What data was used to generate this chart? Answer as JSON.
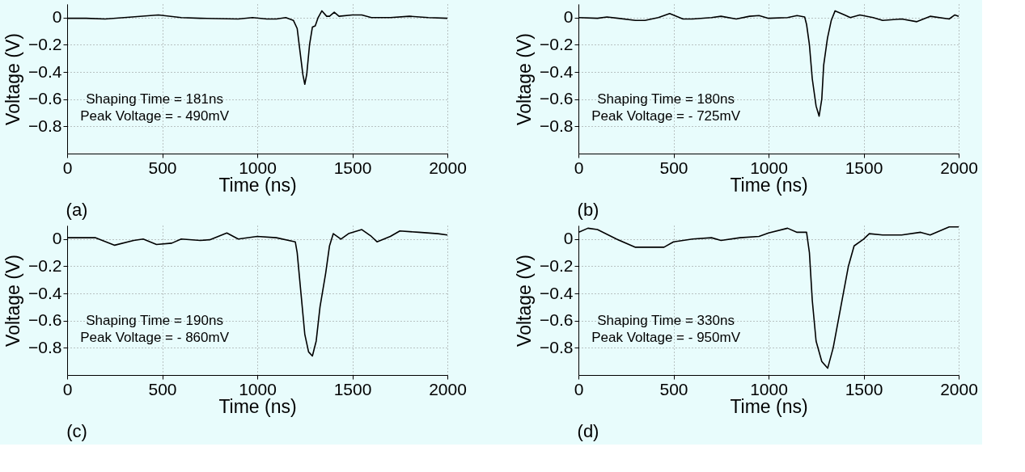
{
  "chart_data": [
    {
      "type": "line",
      "xlabel": "Time (ns)",
      "ylabel": "Voltage (V)",
      "xlim": [
        0,
        2000
      ],
      "ylim": [
        -1.0,
        0.1
      ],
      "xticks": [
        0,
        500,
        1000,
        1500,
        2000
      ],
      "yticks": [
        0,
        -0.2,
        -0.4,
        -0.6,
        -0.8
      ],
      "grid": true,
      "marker": "none",
      "line_style": "solid",
      "annotations": [
        "Shaping Time = 181ns",
        "Peak Voltage = - 490mV",
        "(a)"
      ],
      "x": [
        0,
        100,
        200,
        300,
        480,
        600,
        700,
        900,
        975,
        1050,
        1100,
        1150,
        1190,
        1210,
        1225,
        1240,
        1250,
        1260,
        1275,
        1290,
        1305,
        1320,
        1340,
        1365,
        1380,
        1405,
        1430,
        1500,
        1550,
        1600,
        1700,
        1800,
        1900,
        2000
      ],
      "series": [
        {
          "color": "#000000",
          "values": [
            -0.005,
            -0.005,
            -0.01,
            0.0,
            0.02,
            0.0,
            -0.005,
            -0.01,
            0.0,
            -0.01,
            -0.01,
            0.0,
            -0.02,
            -0.08,
            -0.25,
            -0.42,
            -0.49,
            -0.42,
            -0.2,
            -0.07,
            -0.06,
            0.0,
            0.05,
            0.01,
            0.01,
            0.04,
            0.01,
            0.02,
            0.02,
            0.0,
            0.0,
            0.01,
            0.0,
            -0.005
          ]
        }
      ]
    },
    {
      "type": "line",
      "xlabel": "Time (ns)",
      "ylabel": "Voltage (V)",
      "xlim": [
        0,
        2000
      ],
      "ylim": [
        -1.0,
        0.1
      ],
      "xticks": [
        0,
        500,
        1000,
        1500,
        2000
      ],
      "yticks": [
        0,
        -0.2,
        -0.4,
        -0.6,
        -0.8
      ],
      "grid": true,
      "marker": "none",
      "line_style": "solid",
      "annotations": [
        "Shaping Time = 180ns",
        "Peak Voltage = - 725mV",
        "(b)"
      ],
      "x": [
        0,
        100,
        150,
        300,
        350,
        420,
        480,
        550,
        600,
        700,
        750,
        830,
        900,
        950,
        1000,
        1100,
        1150,
        1190,
        1200,
        1215,
        1230,
        1250,
        1266,
        1280,
        1290,
        1310,
        1330,
        1350,
        1400,
        1430,
        1480,
        1550,
        1600,
        1700,
        1780,
        1850,
        1950,
        1980,
        2000
      ],
      "series": [
        {
          "color": "#000000",
          "values": [
            0.0,
            -0.005,
            0.005,
            -0.02,
            -0.02,
            0.0,
            0.03,
            -0.01,
            -0.01,
            0.0,
            0.01,
            -0.01,
            0.01,
            0.015,
            -0.005,
            0.0,
            0.015,
            0.005,
            -0.05,
            -0.2,
            -0.45,
            -0.65,
            -0.725,
            -0.6,
            -0.35,
            -0.15,
            -0.02,
            0.05,
            0.02,
            0.0,
            0.02,
            0.0,
            -0.02,
            -0.01,
            -0.03,
            0.01,
            -0.01,
            0.02,
            0.01
          ]
        }
      ]
    },
    {
      "type": "line",
      "xlabel": "Time (ns)",
      "ylabel": "Voltage (V)",
      "xlim": [
        0,
        2000
      ],
      "ylim": [
        -1.0,
        0.1
      ],
      "xticks": [
        0,
        500,
        1000,
        1500,
        2000
      ],
      "yticks": [
        0,
        -0.2,
        -0.4,
        -0.6,
        -0.8
      ],
      "grid": true,
      "marker": "none",
      "line_style": "solid",
      "annotations": [
        "Shaping Time = 190ns",
        "Peak Voltage = - 860mV",
        "(c)"
      ],
      "x": [
        0,
        150,
        250,
        350,
        400,
        470,
        550,
        600,
        700,
        750,
        840,
        900,
        1000,
        1100,
        1200,
        1210,
        1230,
        1250,
        1270,
        1290,
        1310,
        1330,
        1360,
        1380,
        1400,
        1440,
        1480,
        1550,
        1600,
        1630,
        1700,
        1750,
        1850,
        1950,
        2000
      ],
      "series": [
        {
          "color": "#000000",
          "values": [
            0.01,
            0.01,
            -0.045,
            -0.01,
            0.0,
            -0.04,
            -0.03,
            0.0,
            -0.01,
            -0.005,
            0.045,
            0.0,
            0.02,
            0.01,
            -0.02,
            -0.1,
            -0.4,
            -0.7,
            -0.83,
            -0.86,
            -0.75,
            -0.5,
            -0.25,
            -0.05,
            0.04,
            0.0,
            0.04,
            0.07,
            0.02,
            -0.02,
            0.02,
            0.06,
            0.05,
            0.04,
            0.03
          ]
        }
      ]
    },
    {
      "type": "line",
      "xlabel": "Time (ns)",
      "ylabel": "Voltage (V)",
      "xlim": [
        0,
        2000
      ],
      "ylim": [
        -1.0,
        0.1
      ],
      "xticks": [
        0,
        500,
        1000,
        1500,
        2000
      ],
      "yticks": [
        0,
        -0.2,
        -0.4,
        -0.6,
        -0.8
      ],
      "grid": true,
      "marker": "none",
      "line_style": "solid",
      "annotations": [
        "Shaping Time = 330ns",
        "Peak Voltage = - 950mV",
        "(d)"
      ],
      "x": [
        0,
        50,
        100,
        200,
        300,
        400,
        450,
        500,
        600,
        700,
        750,
        850,
        950,
        1000,
        1100,
        1150,
        1200,
        1215,
        1230,
        1250,
        1280,
        1311,
        1340,
        1380,
        1420,
        1450,
        1500,
        1530,
        1600,
        1700,
        1800,
        1850,
        1900,
        1950,
        2000
      ],
      "series": [
        {
          "color": "#000000",
          "values": [
            0.05,
            0.08,
            0.07,
            0.0,
            -0.06,
            -0.06,
            -0.06,
            -0.02,
            0.0,
            0.01,
            -0.01,
            0.01,
            0.02,
            0.045,
            0.08,
            0.05,
            0.05,
            -0.1,
            -0.45,
            -0.75,
            -0.9,
            -0.95,
            -0.8,
            -0.5,
            -0.2,
            -0.05,
            0.0,
            0.04,
            0.03,
            0.03,
            0.05,
            0.03,
            0.06,
            0.09,
            0.09
          ]
        }
      ]
    }
  ]
}
